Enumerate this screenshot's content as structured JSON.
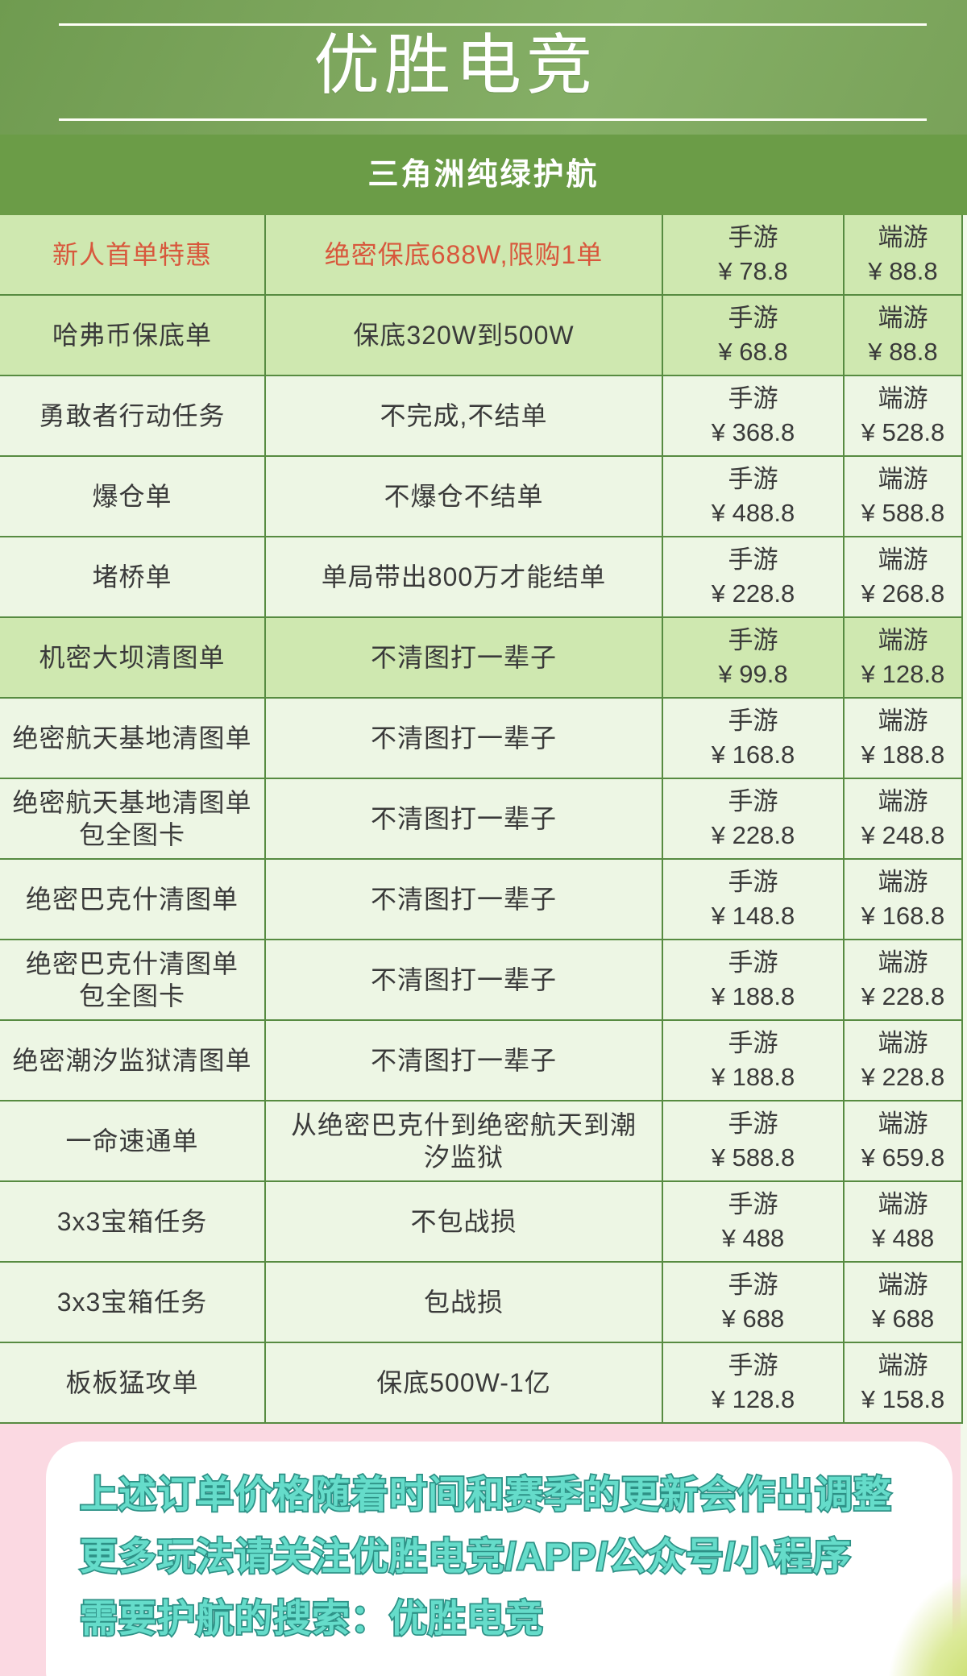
{
  "header": {
    "title": "优胜电竞",
    "subtitle": "三角洲纯绿护航"
  },
  "table": {
    "mobile_label": "手游",
    "pc_label": "端游",
    "rows": [
      {
        "name": "新人首单特惠",
        "desc": "绝密保底688W,限购1单",
        "mobile_price": "¥ 78.8",
        "pc_price": "¥ 88.8",
        "highlight": true,
        "red": true
      },
      {
        "name": "哈弗币保底单",
        "desc": "保底320W到500W",
        "mobile_price": "¥ 68.8",
        "pc_price": "¥ 88.8",
        "highlight": true
      },
      {
        "name": "勇敢者行动任务",
        "desc": "不完成,不结单",
        "mobile_price": "¥ 368.8",
        "pc_price": "¥ 528.8"
      },
      {
        "name": "爆仓单",
        "desc": "不爆仓不结单",
        "mobile_price": "¥ 488.8",
        "pc_price": "¥ 588.8"
      },
      {
        "name": "堵桥单",
        "desc": "单局带出800万才能结单",
        "mobile_price": "¥ 228.8",
        "pc_price": "¥ 268.8"
      },
      {
        "name": "机密大坝清图单",
        "desc": "不清图打一辈子",
        "mobile_price": "¥ 99.8",
        "pc_price": "¥ 128.8",
        "highlight": true
      },
      {
        "name": "绝密航天基地清图单",
        "desc": "不清图打一辈子",
        "mobile_price": "¥ 168.8",
        "pc_price": "¥ 188.8"
      },
      {
        "name": "绝密航天基地清图单\n包全图卡",
        "desc": "不清图打一辈子",
        "mobile_price": "¥ 228.8",
        "pc_price": "¥ 248.8"
      },
      {
        "name": "绝密巴克什清图单",
        "desc": "不清图打一辈子",
        "mobile_price": "¥ 148.8",
        "pc_price": "¥ 168.8"
      },
      {
        "name": "绝密巴克什清图单\n包全图卡",
        "desc": "不清图打一辈子",
        "mobile_price": "¥ 188.8",
        "pc_price": "¥ 228.8"
      },
      {
        "name": "绝密潮汐监狱清图单",
        "desc": "不清图打一辈子",
        "mobile_price": "¥ 188.8",
        "pc_price": "¥ 228.8"
      },
      {
        "name": "一命速通单",
        "desc": "从绝密巴克什到绝密航天到潮汐监狱",
        "mobile_price": "¥ 588.8",
        "pc_price": "¥ 659.8"
      },
      {
        "name": "3x3宝箱任务",
        "desc": "不包战损",
        "mobile_price": "¥ 488",
        "pc_price": "¥ 488"
      },
      {
        "name": "3x3宝箱任务",
        "desc": "包战损",
        "mobile_price": "¥ 688",
        "pc_price": "¥ 688"
      },
      {
        "name": "板板猛攻单",
        "desc": "保底500W-1亿",
        "mobile_price": "¥ 128.8",
        "pc_price": "¥ 158.8"
      }
    ]
  },
  "footer": {
    "lines": [
      "上述订单价格随着时间和赛季的更新会作出调整",
      "更多玩法请关注优胜电竞/APP/公众号/小程序",
      "需要护航的搜索：优胜电竞"
    ]
  },
  "colors": {
    "header_green": "#7da65d",
    "banner_green": "#6b9c47",
    "border_green": "#578b41",
    "row_highlight_green": "#cfe8b0",
    "row_light_green": "#edf6e4",
    "promo_red": "#d8573c",
    "footer_pink": "#fbd9e2",
    "notice_teal": "#65dcca",
    "notice_teal_outline": "#2d9186"
  }
}
